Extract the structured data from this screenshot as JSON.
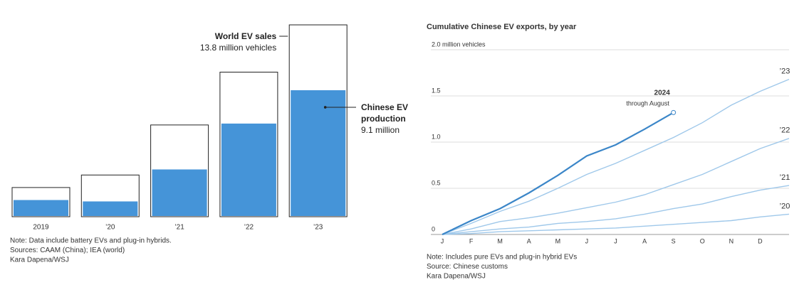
{
  "chart_data": [
    {
      "type": "bar-overlay",
      "categories": [
        "2019",
        "’20",
        "’21",
        "’22",
        "’23"
      ],
      "series": [
        {
          "name": "World EV sales",
          "label": "13.8 million vehicles",
          "color": "#222222",
          "values": [
            2.1,
            3.0,
            6.6,
            10.4,
            13.8
          ]
        },
        {
          "name": "Chinese EV production",
          "label": "9.1 million",
          "color": "#4594d8",
          "values": [
            1.2,
            1.1,
            3.4,
            6.7,
            9.1
          ]
        }
      ],
      "notes": [
        "Note: Data include battery EVs and plug-in hybrids.",
        "Sources: CAAM (China); IEA (world)",
        "Kara Dapena/WSJ"
      ]
    },
    {
      "type": "line",
      "title": "Cumulative Chinese EV exports, by year",
      "categories": [
        "J",
        "F",
        "M",
        "A",
        "M",
        "J",
        "J",
        "A",
        "S",
        "O",
        "N",
        "D",
        null
      ],
      "series": [
        {
          "name": "’20",
          "color": "#9fc8ea",
          "values": [
            0,
            0.01,
            0.03,
            0.04,
            0.05,
            0.06,
            0.07,
            0.09,
            0.11,
            0.13,
            0.15,
            0.19,
            0.22
          ]
        },
        {
          "name": "’21",
          "color": "#9fc8ea",
          "values": [
            0,
            0.03,
            0.06,
            0.08,
            0.12,
            0.14,
            0.17,
            0.22,
            0.28,
            0.33,
            0.41,
            0.48,
            0.53
          ]
        },
        {
          "name": "’22",
          "color": "#9fc8ea",
          "values": [
            0,
            0.06,
            0.14,
            0.18,
            0.23,
            0.29,
            0.35,
            0.43,
            0.54,
            0.65,
            0.79,
            0.93,
            1.04
          ]
        },
        {
          "name": "’23",
          "color": "#9fc8ea",
          "values": [
            0,
            0.12,
            0.25,
            0.36,
            0.5,
            0.65,
            0.77,
            0.91,
            1.05,
            1.21,
            1.4,
            1.55,
            1.68
          ]
        },
        {
          "name": "2024",
          "note": "through August",
          "color": "#3b86c8",
          "values": [
            0,
            0.15,
            0.28,
            0.45,
            0.64,
            0.85,
            0.97,
            1.14,
            1.32,
            null,
            null,
            null,
            null
          ]
        }
      ],
      "ylim": [
        0,
        2
      ],
      "yticks": [
        0,
        0.5,
        {
          "value": 1,
          "label": "1.0"
        },
        1.5,
        {
          "value": 2,
          "label": "2.0 million vehicles"
        }
      ],
      "grid": true,
      "notes": [
        "Note: Includes pure EVs and plug-in hybrid EVs",
        "Source: Chinese customs",
        "Kara Dapena/WSJ"
      ]
    }
  ]
}
